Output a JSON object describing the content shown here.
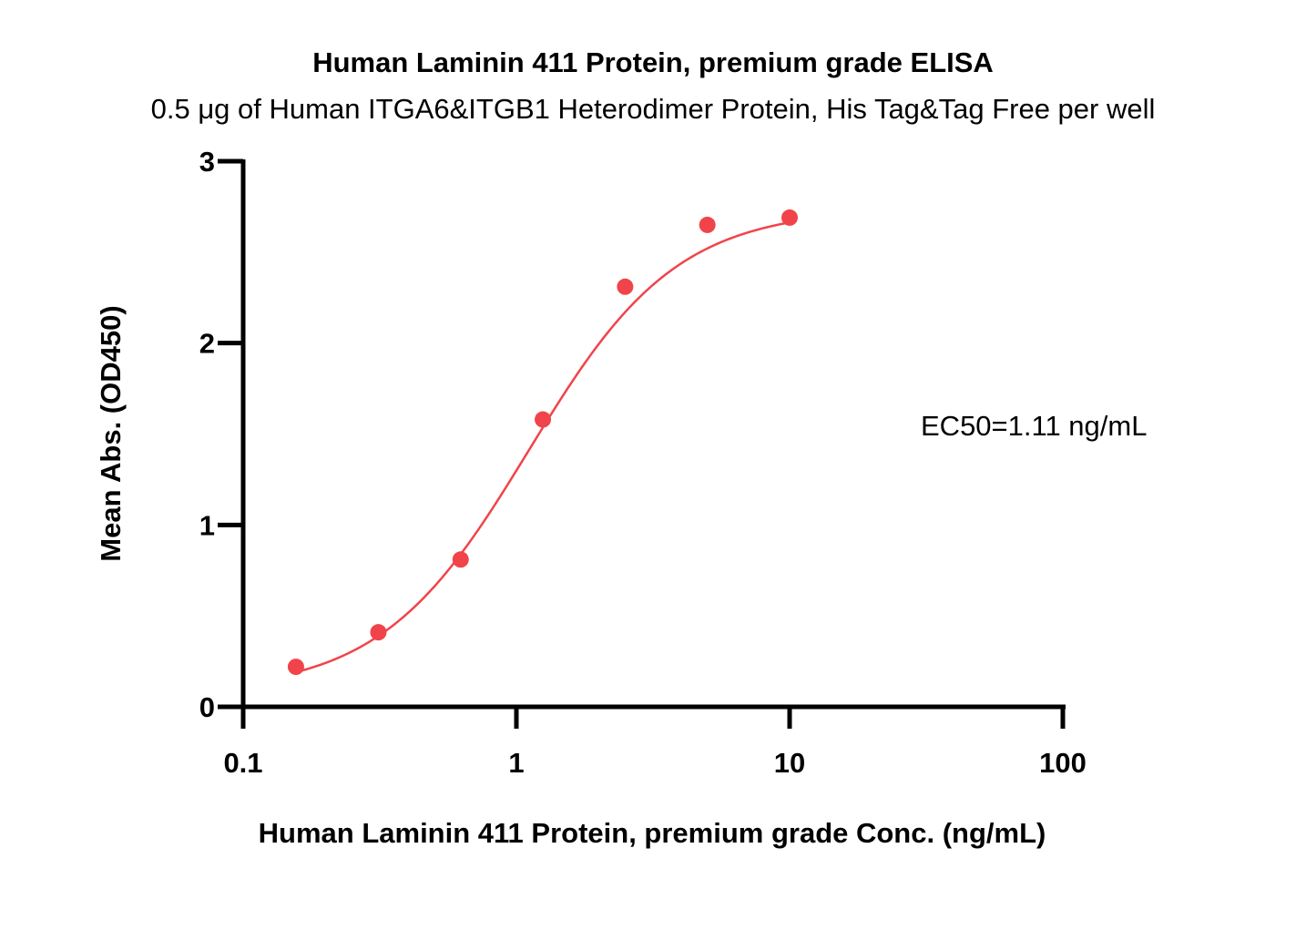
{
  "chart_data": {
    "type": "scatter",
    "title": "Human Laminin 411 Protein, premium grade ELISA",
    "subtitle": "0.5 μg of Human ITGA6&ITGB1 Heterodimer Protein, His Tag&Tag Free per well",
    "xlabel": "Human Laminin 411 Protein, premium grade Conc. (ng/mL)",
    "ylabel": "Mean Abs. (OD450)",
    "x_scale": "log",
    "xlim": [
      0.1,
      100
    ],
    "ylim": [
      0,
      3
    ],
    "x_ticks": [
      "0.1",
      "1",
      "10",
      "100"
    ],
    "y_ticks": [
      "0",
      "1",
      "2",
      "3"
    ],
    "grid": false,
    "annotation": "EC50=1.11 ng/mL",
    "series": [
      {
        "color": "#f0444a",
        "x": [
          0.156,
          0.3125,
          0.625,
          1.25,
          2.5,
          5,
          10
        ],
        "y": [
          0.22,
          0.41,
          0.81,
          1.58,
          2.31,
          2.65,
          2.69
        ],
        "fit": "4PL"
      }
    ]
  }
}
